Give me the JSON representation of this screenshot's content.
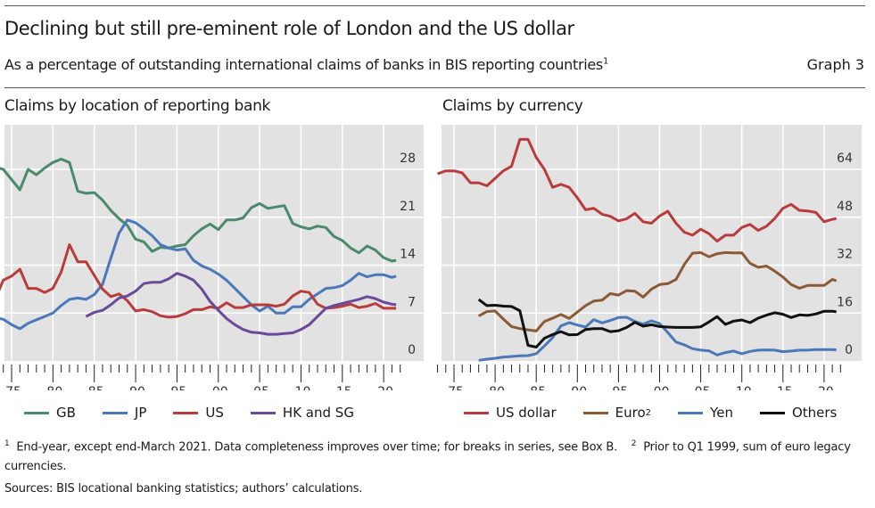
{
  "header": {
    "title": "Declining but still pre-eminent role of London and the US dollar",
    "subtitle": "As a percentage of outstanding international claims of banks in BIS reporting countries",
    "subtitle_footnote_ref": "1",
    "graph_number": "Graph 3"
  },
  "footnotes": {
    "note1_marker": "1",
    "note1": "End-year, except end-March 2021. Data completeness improves over time; for breaks in series, see Box B.",
    "note2_marker": "2",
    "note2": "Prior to Q1 1999, sum of euro legacy currencies.",
    "sources": "Sources: BIS locational banking statistics; authors’ calculations."
  },
  "chart_data": [
    {
      "type": "line",
      "title": "Claims by location of reporting bank",
      "xlabel": "",
      "ylabel": "",
      "x_ticks": [
        "75",
        "80",
        "85",
        "90",
        "95",
        "00",
        "05",
        "10",
        "15",
        "20"
      ],
      "x_tick_years": [
        1975,
        1980,
        1985,
        1990,
        1995,
        2000,
        2005,
        2010,
        2015,
        2020
      ],
      "xlim": [
        1972.3,
        2023
      ],
      "y_ticks": [
        0,
        7,
        14,
        21,
        28
      ],
      "ylim": [
        0,
        34
      ],
      "y_axis_side": "right",
      "grid": true,
      "legend_position": "bottom",
      "x": [
        1973,
        1974,
        1975,
        1976,
        1977,
        1978,
        1979,
        1980,
        1981,
        1982,
        1983,
        1984,
        1985,
        1986,
        1987,
        1988,
        1989,
        1990,
        1991,
        1992,
        1993,
        1994,
        1995,
        1996,
        1997,
        1998,
        1999,
        2000,
        2001,
        2002,
        2003,
        2004,
        2005,
        2006,
        2007,
        2008,
        2009,
        2010,
        2011,
        2012,
        2013,
        2014,
        2015,
        2016,
        2017,
        2018,
        2019,
        2020,
        2021,
        2021.5
      ],
      "series": [
        {
          "name": "GB",
          "color": "#4a8a6a",
          "values": [
            28.3,
            28,
            26.5,
            25,
            28,
            27.2,
            28.2,
            29,
            29.5,
            29,
            24.8,
            24.5,
            24.6,
            23.5,
            22,
            20.8,
            19.8,
            17.8,
            17.4,
            16,
            16.6,
            16.5,
            16.8,
            17,
            18.3,
            19.3,
            20,
            19.2,
            20.6,
            20.6,
            20.9,
            22.4,
            23,
            22.3,
            22.5,
            22.7,
            20.1,
            19.6,
            19.3,
            19.7,
            19.5,
            18.2,
            17.6,
            16.5,
            15.8,
            16.8,
            16.2,
            15.1,
            14.6,
            14.7
          ]
        },
        {
          "name": "JP",
          "color": "#4a78b8",
          "values": [
            6.3,
            6.1,
            5.3,
            4.7,
            5.5,
            6,
            6.5,
            7,
            8.1,
            9,
            9.2,
            9,
            9.7,
            11.2,
            15,
            18.7,
            20.6,
            20.2,
            19.3,
            18.3,
            17,
            16.5,
            16.2,
            16.4,
            14.7,
            13.9,
            13.4,
            12.7,
            11.8,
            10.6,
            9.4,
            8.2,
            7.3,
            8,
            7,
            7,
            7.9,
            7.9,
            9,
            9.8,
            10.6,
            10.7,
            11,
            11.8,
            12.8,
            12.3,
            12.6,
            12.6,
            12.2,
            12.4
          ]
        },
        {
          "name": "US",
          "color": "#b83c3c",
          "values": [
            9,
            11.8,
            12.4,
            13.4,
            10.6,
            10.6,
            10,
            10.6,
            13,
            17,
            14.5,
            14.5,
            12.5,
            10.5,
            9.4,
            9.8,
            8.8,
            7.3,
            7.5,
            7.2,
            6.6,
            6.4,
            6.5,
            6.9,
            7.5,
            7.5,
            7.9,
            7.7,
            8.5,
            7.8,
            7.8,
            8.2,
            8.2,
            8.2,
            8,
            8.3,
            9.5,
            10.2,
            10,
            8.3,
            7.7,
            7.8,
            8,
            8.3,
            7.8,
            8,
            8.4,
            7.7,
            7.7,
            7.7
          ]
        },
        {
          "name": "HK and SG",
          "color": "#6a4a96",
          "values": [
            null,
            null,
            null,
            null,
            null,
            null,
            null,
            null,
            null,
            null,
            null,
            6.5,
            7.1,
            7.4,
            8.2,
            9.2,
            9.5,
            10.2,
            11.3,
            11.5,
            11.5,
            12,
            12.8,
            12.4,
            11.8,
            10.5,
            8.7,
            7.4,
            6.2,
            5.3,
            4.6,
            4.2,
            4.1,
            3.9,
            3.9,
            4,
            4.1,
            4.6,
            5.3,
            6.5,
            7.7,
            8.1,
            8.4,
            8.7,
            9,
            9.4,
            9.1,
            8.6,
            8.3,
            8.2
          ]
        }
      ]
    },
    {
      "type": "line",
      "title": "Claims by currency",
      "xlabel": "",
      "ylabel": "",
      "x_ticks": [
        "75",
        "80",
        "85",
        "90",
        "95",
        "00",
        "05",
        "10",
        "15",
        "20"
      ],
      "x_tick_years": [
        1975,
        1980,
        1985,
        1990,
        1995,
        2000,
        2005,
        2010,
        2015,
        2020
      ],
      "xlim": [
        1972.3,
        2023
      ],
      "y_ticks": [
        0,
        16,
        32,
        48,
        64
      ],
      "ylim": [
        0,
        78
      ],
      "y_axis_side": "right",
      "grid": true,
      "legend_position": "bottom",
      "x": [
        1973,
        1974,
        1975,
        1976,
        1977,
        1978,
        1979,
        1980,
        1981,
        1982,
        1983,
        1984,
        1985,
        1986,
        1987,
        1988,
        1989,
        1990,
        1991,
        1992,
        1993,
        1994,
        1995,
        1996,
        1997,
        1998,
        1999,
        2000,
        2001,
        2002,
        2003,
        2004,
        2005,
        2006,
        2007,
        2008,
        2009,
        2010,
        2011,
        2012,
        2013,
        2014,
        2015,
        2016,
        2017,
        2018,
        2019,
        2020,
        2021,
        2021.5
      ],
      "series": [
        {
          "name": "US dollar",
          "color": "#b83c3c",
          "values": [
            62.5,
            63.5,
            63.5,
            62.8,
            59.5,
            59.5,
            58.5,
            61,
            63.5,
            65,
            74,
            74,
            68,
            64,
            58,
            59,
            58,
            54.5,
            50.5,
            51,
            49,
            48.3,
            46.8,
            47.5,
            49.3,
            46.5,
            46,
            48.4,
            50,
            46,
            43,
            42,
            44,
            42.5,
            40,
            42,
            42,
            44.6,
            45.6,
            43.6,
            45,
            47.6,
            51,
            52.3,
            50.3,
            50.1,
            49.6,
            46.5,
            47.3,
            47.6
          ]
        },
        {
          "name": "Euro",
          "name_footnote_ref": "2",
          "color": "#8a5a36",
          "values": [
            null,
            null,
            null,
            null,
            null,
            15,
            16.5,
            16.7,
            14,
            11.5,
            10.8,
            10.4,
            10,
            13.2,
            14.3,
            15.5,
            14.2,
            16.3,
            18.5,
            20,
            20.3,
            22.5,
            22,
            23.5,
            23.3,
            21.3,
            24,
            25.5,
            25.8,
            27.2,
            32.2,
            36,
            36.2,
            34.8,
            35.8,
            36.2,
            36.1,
            36.1,
            32.6,
            31.3,
            31.7,
            30,
            28,
            25.5,
            24.3,
            25.2,
            25.2,
            25.2,
            27.2,
            26.8
          ]
        },
        {
          "name": "Yen",
          "color": "#4a78b8",
          "values": [
            null,
            null,
            null,
            null,
            null,
            0.2,
            0.6,
            0.9,
            1.3,
            1.5,
            1.7,
            1.8,
            2.4,
            5,
            7.8,
            11.7,
            12.8,
            12,
            11.3,
            13.8,
            12.7,
            13.5,
            14.5,
            14.6,
            13.2,
            12.3,
            13.4,
            12.5,
            9.5,
            6.3,
            5.4,
            4.1,
            3.6,
            3.4,
            2,
            2.8,
            3.3,
            2.4,
            3.2,
            3.6,
            3.7,
            3.6,
            3.1,
            3.3,
            3.6,
            3.6,
            3.8,
            3.8,
            3.8,
            3.7
          ]
        },
        {
          "name": "Others",
          "color": "#111111",
          "values": [
            null,
            null,
            null,
            null,
            null,
            20.5,
            18.5,
            18.6,
            18.3,
            18.2,
            16.8,
            5.2,
            4.6,
            7.6,
            8.8,
            9.8,
            8.7,
            8.8,
            10.5,
            10.8,
            10.8,
            9.8,
            10.1,
            11.2,
            12.9,
            11.6,
            12.1,
            11.5,
            11.3,
            11.2,
            11.2,
            11.2,
            11.4,
            13,
            14.8,
            12.2,
            13.3,
            13.7,
            12.8,
            14.3,
            15.3,
            16.1,
            15.6,
            14.5,
            15.4,
            15.2,
            15.7,
            16.6,
            16.6,
            16.4
          ]
        }
      ]
    }
  ]
}
